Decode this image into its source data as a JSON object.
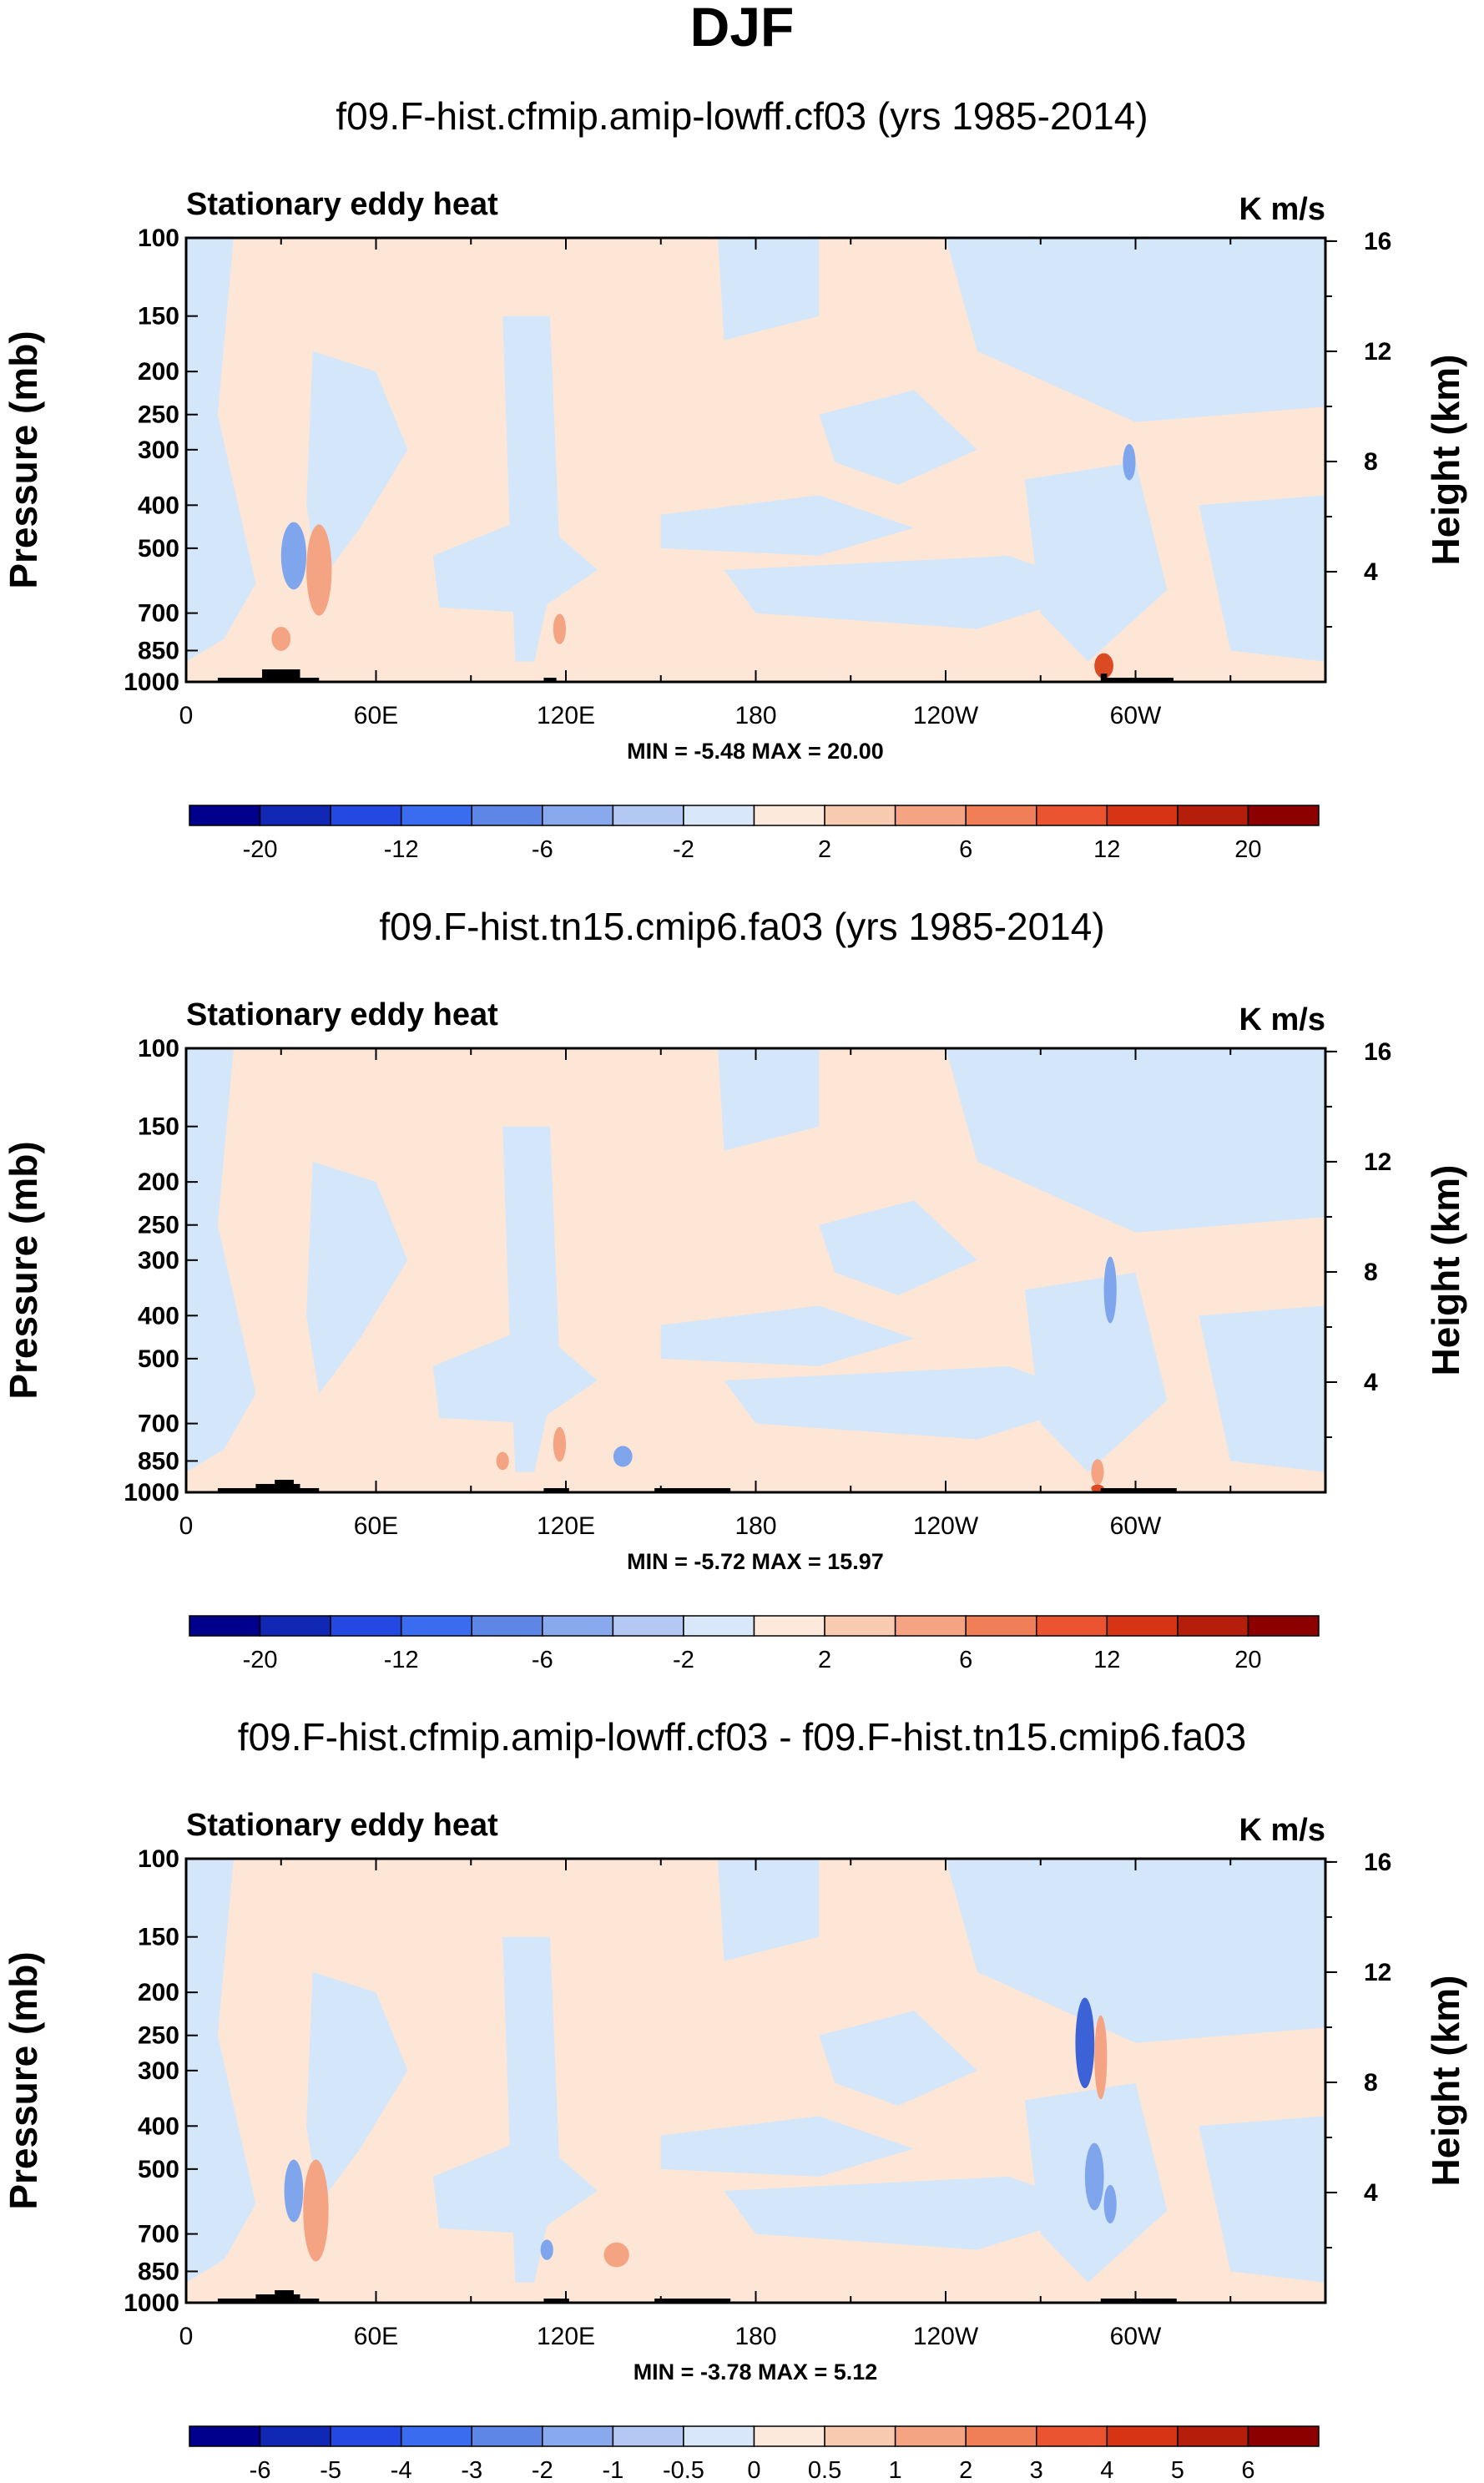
{
  "figure": {
    "title": "DJF"
  },
  "colors": {
    "panel_bg": "#ffffff",
    "land": "#000000",
    "blue_light": "#d4e6fa",
    "blue_mid": "#7fa6ec",
    "blue_dark": "#3c62d8",
    "orange_light": "#fde6d6",
    "orange_mid": "#f4a482",
    "orange_dark": "#dc4a24"
  },
  "chart_data": [
    {
      "type": "contour",
      "title": "f09.F-hist.cfmip.amip-lowff.cf03 (yrs 1985-2014)",
      "left_label": "Stationary eddy heat",
      "units": "K m/s",
      "ylabel": "Pressure (mb)",
      "y2label": "Height (km)",
      "xticks": [
        "0",
        "60E",
        "120E",
        "180",
        "120W",
        "60W"
      ],
      "xtick_lon": [
        0,
        60,
        120,
        180,
        240,
        300
      ],
      "xlim": [
        0,
        360
      ],
      "yticks": [
        "100",
        "150",
        "200",
        "250",
        "300",
        "400",
        "500",
        "700",
        "850",
        "1000"
      ],
      "ytick_p": [
        100,
        150,
        200,
        250,
        300,
        400,
        500,
        700,
        850,
        1000
      ],
      "ylim": [
        100,
        1000
      ],
      "y2ticks": [
        "4",
        "8",
        "12",
        "16"
      ],
      "y2tick_km": [
        4,
        8,
        12,
        16
      ],
      "minmax": "MIN =  -5.48   MAX =  20.00",
      "min": -5.48,
      "max": 20.0,
      "colorbar": {
        "levels": [
          "-20",
          "-12",
          "-6",
          "-2",
          "2",
          "6",
          "12",
          "20"
        ],
        "colors": [
          "#00008c",
          "#1028b4",
          "#2449e2",
          "#3a6cf0",
          "#5d86e6",
          "#89a9ee",
          "#b3c9f4",
          "#d9e7fb",
          "#fde9dc",
          "#f8cbb0",
          "#f4a482",
          "#f07e56",
          "#ea5430",
          "#d63414",
          "#b41e0a",
          "#8c0000"
        ]
      },
      "blobs": [
        {
          "lon": 34,
          "p": 520,
          "rx": 4,
          "ry": 90,
          "c": "blue_mid"
        },
        {
          "lon": 42,
          "p": 560,
          "rx": 4,
          "ry": 130,
          "c": "orange_mid"
        },
        {
          "lon": 30,
          "p": 800,
          "rx": 3,
          "ry": 50,
          "c": "orange_mid"
        },
        {
          "lon": 118,
          "p": 760,
          "rx": 2,
          "ry": 60,
          "c": "orange_mid"
        },
        {
          "lon": 290,
          "p": 920,
          "rx": 3,
          "ry": 60,
          "c": "orange_dark"
        },
        {
          "lon": 298,
          "p": 320,
          "rx": 2,
          "ry": 30,
          "c": "blue_mid"
        }
      ],
      "land": [
        {
          "lon0": 10,
          "lon1": 42,
          "h": 1
        },
        {
          "lon0": 24,
          "lon1": 36,
          "h": 3
        },
        {
          "lon0": 113,
          "lon1": 117,
          "h": 1
        },
        {
          "lon0": 289,
          "lon1": 291,
          "h": 2
        },
        {
          "lon0": 290,
          "lon1": 312,
          "h": 1
        }
      ]
    },
    {
      "type": "contour",
      "title": "f09.F-hist.tn15.cmip6.fa03 (yrs 1985-2014)",
      "left_label": "Stationary eddy heat",
      "units": "K m/s",
      "ylabel": "Pressure (mb)",
      "y2label": "Height (km)",
      "xticks": [
        "0",
        "60E",
        "120E",
        "180",
        "120W",
        "60W"
      ],
      "xtick_lon": [
        0,
        60,
        120,
        180,
        240,
        300
      ],
      "xlim": [
        0,
        360
      ],
      "yticks": [
        "100",
        "150",
        "200",
        "250",
        "300",
        "400",
        "500",
        "700",
        "850",
        "1000"
      ],
      "ytick_p": [
        100,
        150,
        200,
        250,
        300,
        400,
        500,
        700,
        850,
        1000
      ],
      "ylim": [
        100,
        1000
      ],
      "y2ticks": [
        "4",
        "8",
        "12",
        "16"
      ],
      "y2tick_km": [
        4,
        8,
        12,
        16
      ],
      "minmax": "MIN =  -5.72   MAX =  15.97",
      "min": -5.72,
      "max": 15.97,
      "colorbar": {
        "levels": [
          "-20",
          "-12",
          "-6",
          "-2",
          "2",
          "6",
          "12",
          "20"
        ],
        "colors": [
          "#00008c",
          "#1028b4",
          "#2449e2",
          "#3a6cf0",
          "#5d86e6",
          "#89a9ee",
          "#b3c9f4",
          "#d9e7fb",
          "#fde9dc",
          "#f8cbb0",
          "#f4a482",
          "#f07e56",
          "#ea5430",
          "#d63414",
          "#b41e0a",
          "#8c0000"
        ]
      },
      "blobs": [
        {
          "lon": 118,
          "p": 780,
          "rx": 2,
          "ry": 70,
          "c": "orange_mid"
        },
        {
          "lon": 100,
          "p": 850,
          "rx": 2,
          "ry": 40,
          "c": "orange_mid"
        },
        {
          "lon": 138,
          "p": 830,
          "rx": 3,
          "ry": 45,
          "c": "blue_mid"
        },
        {
          "lon": 288,
          "p": 900,
          "rx": 2,
          "ry": 60,
          "c": "orange_mid"
        },
        {
          "lon": 288,
          "p": 980,
          "rx": 2,
          "ry": 20,
          "c": "orange_dark"
        },
        {
          "lon": 292,
          "p": 350,
          "rx": 2,
          "ry": 60,
          "c": "blue_mid"
        }
      ],
      "land": [
        {
          "lon0": 10,
          "lon1": 42,
          "h": 1
        },
        {
          "lon0": 22,
          "lon1": 36,
          "h": 2
        },
        {
          "lon0": 28,
          "lon1": 34,
          "h": 3
        },
        {
          "lon0": 113,
          "lon1": 121,
          "h": 1
        },
        {
          "lon0": 148,
          "lon1": 172,
          "h": 1
        },
        {
          "lon0": 289,
          "lon1": 313,
          "h": 1
        }
      ]
    },
    {
      "type": "contour",
      "title": "f09.F-hist.cfmip.amip-lowff.cf03 - f09.F-hist.tn15.cmip6.fa03",
      "left_label": "Stationary eddy heat",
      "units": "K m/s",
      "ylabel": "Pressure (mb)",
      "y2label": "Height (km)",
      "xticks": [
        "0",
        "60E",
        "120E",
        "180",
        "120W",
        "60W"
      ],
      "xtick_lon": [
        0,
        60,
        120,
        180,
        240,
        300
      ],
      "xlim": [
        0,
        360
      ],
      "yticks": [
        "100",
        "150",
        "200",
        "250",
        "300",
        "400",
        "500",
        "700",
        "850",
        "1000"
      ],
      "ytick_p": [
        100,
        150,
        200,
        250,
        300,
        400,
        500,
        700,
        850,
        1000
      ],
      "ylim": [
        100,
        1000
      ],
      "y2ticks": [
        "4",
        "8",
        "12",
        "16"
      ],
      "y2tick_km": [
        4,
        8,
        12,
        16
      ],
      "minmax": "MIN =  -3.78   MAX =   5.12",
      "min": -3.78,
      "max": 5.12,
      "colorbar": {
        "levels": [
          "-6",
          "-5",
          "-4",
          "-3",
          "-2",
          "-1",
          "-0.5",
          "0",
          "0.5",
          "1",
          "2",
          "3",
          "4",
          "5",
          "6"
        ],
        "colors": [
          "#00008c",
          "#1028b4",
          "#2449e2",
          "#3a6cf0",
          "#5d86e6",
          "#89a9ee",
          "#b3c9f4",
          "#d9e7fb",
          "#fde9dc",
          "#f8cbb0",
          "#f4a482",
          "#f07e56",
          "#ea5430",
          "#d63414",
          "#b41e0a",
          "#8c0000"
        ]
      },
      "blobs": [
        {
          "lon": 34,
          "p": 560,
          "rx": 3,
          "ry": 90,
          "c": "blue_mid"
        },
        {
          "lon": 41,
          "p": 620,
          "rx": 4,
          "ry": 160,
          "c": "orange_mid"
        },
        {
          "lon": 114,
          "p": 760,
          "rx": 2,
          "ry": 40,
          "c": "blue_mid"
        },
        {
          "lon": 136,
          "p": 780,
          "rx": 4,
          "ry": 50,
          "c": "orange_mid"
        },
        {
          "lon": 284,
          "p": 260,
          "rx": 3,
          "ry": 60,
          "c": "blue_dark"
        },
        {
          "lon": 287,
          "p": 520,
          "rx": 3,
          "ry": 90,
          "c": "blue_mid"
        },
        {
          "lon": 289,
          "p": 280,
          "rx": 2,
          "ry": 60,
          "c": "orange_mid"
        },
        {
          "lon": 292,
          "p": 600,
          "rx": 2,
          "ry": 60,
          "c": "blue_mid"
        }
      ],
      "land": [
        {
          "lon0": 10,
          "lon1": 42,
          "h": 1
        },
        {
          "lon0": 22,
          "lon1": 36,
          "h": 2
        },
        {
          "lon0": 28,
          "lon1": 34,
          "h": 3
        },
        {
          "lon0": 113,
          "lon1": 121,
          "h": 1
        },
        {
          "lon0": 148,
          "lon1": 172,
          "h": 1
        },
        {
          "lon0": 289,
          "lon1": 313,
          "h": 1
        }
      ]
    }
  ]
}
